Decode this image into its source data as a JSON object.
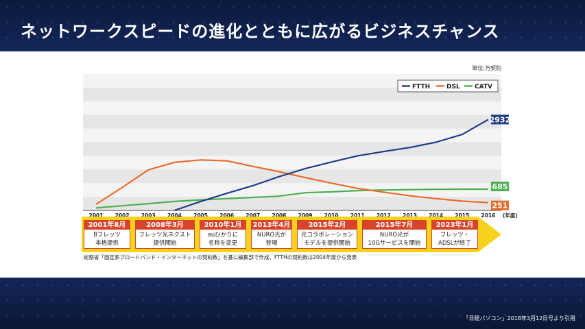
{
  "slide": {
    "title": "ネットワークスピードの進化とともに広がるビジネスチャンス",
    "credit": "「日経パソコン」2018年3月12日号より引用"
  },
  "chart_data": {
    "type": "line",
    "unit_label": "単位:万契約",
    "x_unit": "(年度)",
    "x": [
      "2001",
      "2002",
      "2003",
      "2004",
      "2005",
      "2006",
      "2007",
      "2008",
      "2009",
      "2010",
      "2011",
      "2012",
      "2013",
      "2014",
      "2015",
      "2016"
    ],
    "ylim": [
      0,
      4400
    ],
    "series": [
      {
        "name": "FTTH",
        "color": "#1f3c88",
        "values": [
          null,
          null,
          null,
          0,
          290,
          550,
          800,
          1090,
          1350,
          1560,
          1760,
          1900,
          2030,
          2200,
          2450,
          2932
        ]
      },
      {
        "name": "DSL",
        "color": "#e86c2c",
        "values": [
          200,
          740,
          1310,
          1550,
          1630,
          1600,
          1420,
          1250,
          1060,
          880,
          710,
          590,
          470,
          380,
          300,
          251
        ]
      },
      {
        "name": "CATV",
        "color": "#4caf50",
        "values": [
          80,
          150,
          220,
          290,
          340,
          380,
          420,
          460,
          570,
          600,
          640,
          660,
          670,
          680,
          685,
          685
        ]
      }
    ],
    "end_labels": [
      {
        "series": "FTTH",
        "text": "2932"
      },
      {
        "series": "CATV",
        "text": "685"
      },
      {
        "series": "DSL",
        "text": "251"
      }
    ],
    "legend_position": "top-right",
    "grid": "alternating-bands"
  },
  "timeline": [
    {
      "date": "2001年8月",
      "line1": "Bフレッツ",
      "line2": "本格提供"
    },
    {
      "date": "2008年3月",
      "line1": "フレッツ光ネクスト",
      "line2": "提供開始"
    },
    {
      "date": "2010年1月",
      "line1": "auひかりに",
      "line2": "名称を変更"
    },
    {
      "date": "2013年4月",
      "line1": "NURO光が",
      "line2": "登場"
    },
    {
      "date": "2015年2月",
      "line1": "光コラボレーション",
      "line2": "モデルを提供開始"
    },
    {
      "date": "2015年7月",
      "line1": "NURO光が",
      "line2": "10Gサービスを開始"
    },
    {
      "date": "2023年1月",
      "line1": "フレッツ・",
      "line2": "ADSLが終了"
    }
  ],
  "footnote": "総務省「固定系ブロードバンド・インターネットの契約数」を基に編集部で作成。FTTHの契約数は2004年度から発表"
}
